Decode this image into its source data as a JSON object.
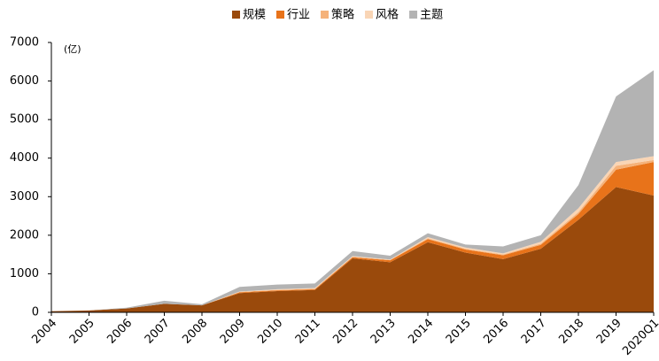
{
  "chart_data": {
    "type": "stacked-area",
    "annotation": "(亿)",
    "categories": [
      "2004",
      "2005",
      "2006",
      "2007",
      "2008",
      "2009",
      "2010",
      "2011",
      "2012",
      "2013",
      "2014",
      "2015",
      "2016",
      "2017",
      "2018",
      "2019",
      "2020Q1"
    ],
    "series": [
      {
        "name": "规模",
        "color": "#9a4a0c",
        "values": [
          30,
          50,
          100,
          220,
          180,
          500,
          550,
          580,
          1400,
          1300,
          1820,
          1550,
          1380,
          1650,
          2400,
          3250,
          3030
        ]
      },
      {
        "name": "行业",
        "color": "#e8731a",
        "values": [
          0,
          0,
          0,
          0,
          0,
          20,
          20,
          20,
          30,
          50,
          80,
          80,
          100,
          100,
          150,
          450,
          870
        ]
      },
      {
        "name": "策略",
        "color": "#f5b27a",
        "values": [
          0,
          0,
          0,
          0,
          0,
          10,
          10,
          10,
          10,
          10,
          20,
          20,
          20,
          30,
          50,
          100,
          50
        ]
      },
      {
        "name": "风格",
        "color": "#f9d5b5",
        "values": [
          0,
          0,
          0,
          0,
          0,
          10,
          20,
          20,
          20,
          10,
          30,
          30,
          30,
          50,
          100,
          100,
          100
        ]
      },
      {
        "name": "主题",
        "color": "#b3b3b3",
        "values": [
          0,
          0,
          20,
          80,
          30,
          120,
          120,
          120,
          130,
          100,
          100,
          80,
          180,
          170,
          600,
          1700,
          2230
        ]
      }
    ],
    "ylim": [
      0,
      7000
    ],
    "yticks": [
      0,
      1000,
      2000,
      3000,
      4000,
      5000,
      6000,
      7000
    ]
  }
}
